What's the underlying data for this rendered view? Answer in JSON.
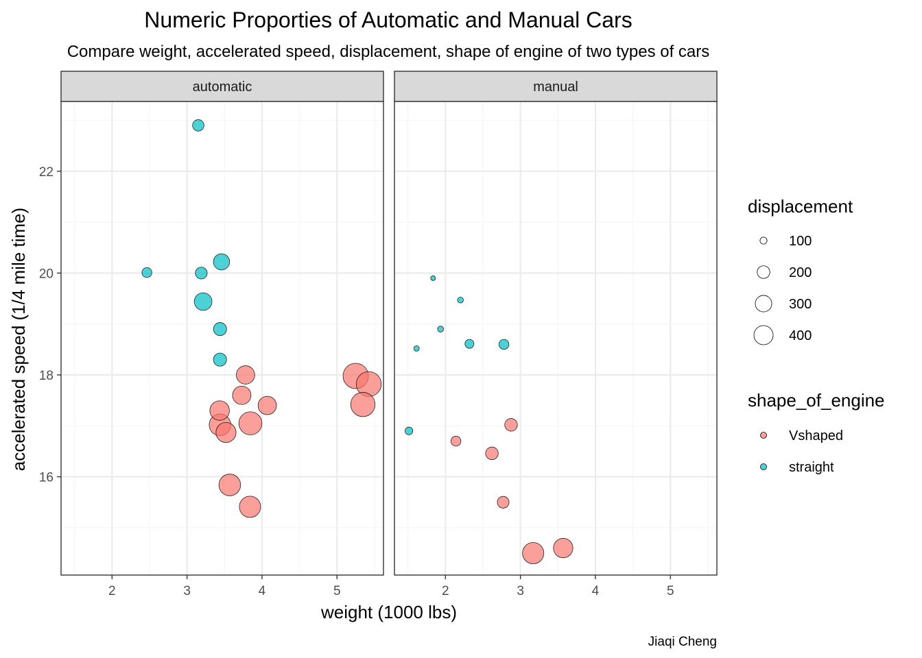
{
  "chart_data": {
    "type": "scatter",
    "title": "Numeric Proporties of Automatic and Manual Cars",
    "subtitle": "Compare weight, accelerated speed, displacement, shape of engine of two types of cars",
    "caption": "Jiaqi Cheng",
    "xlabel": "weight (1000 lbs)",
    "ylabel": "accelerated speed (1/4 mile time)",
    "xlim": [
      1.32,
      5.62
    ],
    "ylim": [
      14.07,
      23.37
    ],
    "x_ticks": [
      2,
      3,
      4,
      5
    ],
    "x_tick_labels": [
      "2",
      "3",
      "4",
      "5"
    ],
    "y_ticks": [
      16,
      18,
      20,
      22
    ],
    "y_tick_labels": [
      "16",
      "18",
      "20",
      "22"
    ],
    "facets": [
      {
        "label": "automatic",
        "points": [
          {
            "wt": 3.15,
            "qsec": 22.9,
            "disp": 140.8,
            "engine": "straight"
          },
          {
            "wt": 2.465,
            "qsec": 20.01,
            "disp": 120.1,
            "engine": "straight"
          },
          {
            "wt": 3.19,
            "qsec": 20.0,
            "disp": 146.7,
            "engine": "straight"
          },
          {
            "wt": 3.46,
            "qsec": 20.22,
            "disp": 225.0,
            "engine": "straight"
          },
          {
            "wt": 3.215,
            "qsec": 19.44,
            "disp": 258.0,
            "engine": "straight"
          },
          {
            "wt": 3.44,
            "qsec": 18.9,
            "disp": 167.6,
            "engine": "straight"
          },
          {
            "wt": 3.44,
            "qsec": 18.3,
            "disp": 167.6,
            "engine": "straight"
          },
          {
            "wt": 3.44,
            "qsec": 17.02,
            "disp": 360.0,
            "engine": "Vshaped"
          },
          {
            "wt": 3.57,
            "qsec": 15.84,
            "disp": 360.0,
            "engine": "Vshaped"
          },
          {
            "wt": 4.07,
            "qsec": 17.4,
            "disp": 275.8,
            "engine": "Vshaped"
          },
          {
            "wt": 3.73,
            "qsec": 17.6,
            "disp": 275.8,
            "engine": "Vshaped"
          },
          {
            "wt": 3.78,
            "qsec": 18.0,
            "disp": 275.8,
            "engine": "Vshaped"
          },
          {
            "wt": 5.25,
            "qsec": 17.98,
            "disp": 472.0,
            "engine": "Vshaped"
          },
          {
            "wt": 5.424,
            "qsec": 17.82,
            "disp": 460.0,
            "engine": "Vshaped"
          },
          {
            "wt": 5.345,
            "qsec": 17.42,
            "disp": 440.0,
            "engine": "Vshaped"
          },
          {
            "wt": 3.52,
            "qsec": 16.87,
            "disp": 318.0,
            "engine": "Vshaped"
          },
          {
            "wt": 3.435,
            "qsec": 17.3,
            "disp": 304.0,
            "engine": "Vshaped"
          },
          {
            "wt": 3.84,
            "qsec": 15.41,
            "disp": 350.0,
            "engine": "Vshaped"
          },
          {
            "wt": 3.845,
            "qsec": 17.05,
            "disp": 400.0,
            "engine": "Vshaped"
          }
        ]
      },
      {
        "label": "manual",
        "points": [
          {
            "wt": 2.2,
            "qsec": 19.47,
            "disp": 78.7,
            "engine": "straight"
          },
          {
            "wt": 1.615,
            "qsec": 18.52,
            "disp": 75.7,
            "engine": "straight"
          },
          {
            "wt": 1.835,
            "qsec": 19.9,
            "disp": 71.1,
            "engine": "straight"
          },
          {
            "wt": 1.935,
            "qsec": 18.9,
            "disp": 79.0,
            "engine": "straight"
          },
          {
            "wt": 1.513,
            "qsec": 16.9,
            "disp": 95.1,
            "engine": "straight"
          },
          {
            "wt": 2.32,
            "qsec": 18.61,
            "disp": 108.0,
            "engine": "straight"
          },
          {
            "wt": 2.78,
            "qsec": 18.6,
            "disp": 121.0,
            "engine": "straight"
          },
          {
            "wt": 2.62,
            "qsec": 16.46,
            "disp": 160.0,
            "engine": "Vshaped"
          },
          {
            "wt": 2.875,
            "qsec": 17.02,
            "disp": 160.0,
            "engine": "Vshaped"
          },
          {
            "wt": 2.14,
            "qsec": 16.7,
            "disp": 120.3,
            "engine": "Vshaped"
          },
          {
            "wt": 3.17,
            "qsec": 14.5,
            "disp": 351.0,
            "engine": "Vshaped"
          },
          {
            "wt": 2.77,
            "qsec": 15.5,
            "disp": 145.0,
            "engine": "Vshaped"
          },
          {
            "wt": 3.57,
            "qsec": 14.6,
            "disp": 301.0,
            "engine": "Vshaped"
          }
        ]
      }
    ],
    "legends": {
      "size": {
        "title": "displacement",
        "breaks": [
          100,
          200,
          300,
          400
        ],
        "labels": [
          "100",
          "200",
          "300",
          "400"
        ]
      },
      "fill": {
        "title": "shape_of_engine",
        "items": [
          {
            "label": "Vshaped",
            "color": "#F8766D"
          },
          {
            "label": "straight",
            "color": "#00BFC4"
          }
        ]
      },
      "position": "right"
    },
    "disp_range": [
      71.1,
      472.0
    ],
    "colors": {
      "Vshaped": "#F8766D",
      "straight": "#00BFC4",
      "point_outline": "#000000",
      "panel_border": "#333333",
      "strip_fill": "#D9D9D9",
      "grid_major": "#EBEBEB",
      "grid_minor": "#F5F5F5"
    },
    "alpha": 0.7
  }
}
